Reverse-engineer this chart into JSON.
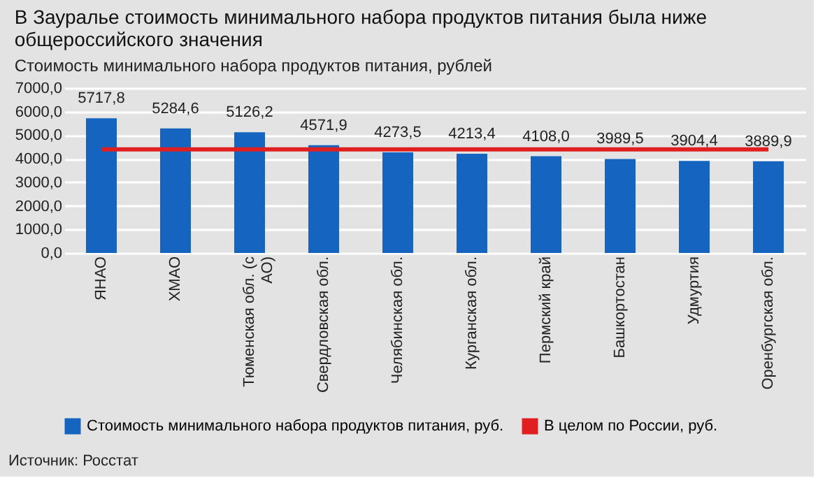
{
  "chart_data": {
    "type": "bar",
    "title": "В Зауралье стоимость минимального набора продуктов питания была ниже общероссийского значения",
    "subtitle": "Стоимость минимального набора продуктов питания, рублей",
    "categories": [
      "ЯНАО",
      "ХМАО",
      "Тюменская обл. (с АО)",
      "Свердловская обл.",
      "Челябинская обл.",
      "Курганская обл.",
      "Пермский край",
      "Башкортостан",
      "Удмуртия",
      "Оренбургская обл."
    ],
    "series": [
      {
        "name": "Стоимость минимального набора продуктов питания, руб.",
        "color": "#1565c0",
        "values": [
          5717.8,
          5284.6,
          5126.2,
          4571.9,
          4273.5,
          4213.4,
          4108.0,
          3989.5,
          3904.4,
          3889.9
        ],
        "value_labels": [
          "5717,8",
          "5284,6",
          "5126,2",
          "4571,9",
          "4273,5",
          "4213,4",
          "4108,0",
          "3989,5",
          "3904,4",
          "3889,9"
        ]
      },
      {
        "name": "В целом по России, руб.",
        "type": "line",
        "color": "#e02020",
        "values": [
          4400,
          4400,
          4400,
          4400,
          4400,
          4400,
          4400,
          4400,
          4400,
          4400
        ]
      }
    ],
    "ylim": [
      0,
      7000
    ],
    "yticks": [
      {
        "value": 0,
        "label": "0,0"
      },
      {
        "value": 1000,
        "label": "1000,0"
      },
      {
        "value": 2000,
        "label": "2000,0"
      },
      {
        "value": 3000,
        "label": "3000,0"
      },
      {
        "value": 4000,
        "label": "4000,0"
      },
      {
        "value": 5000,
        "label": "5000,0"
      },
      {
        "value": 6000,
        "label": "6000,0"
      },
      {
        "value": 7000,
        "label": "7000,0"
      }
    ],
    "grid": "y",
    "legend": "bottom",
    "annotations": [
      "Источник: Росстат"
    ]
  }
}
